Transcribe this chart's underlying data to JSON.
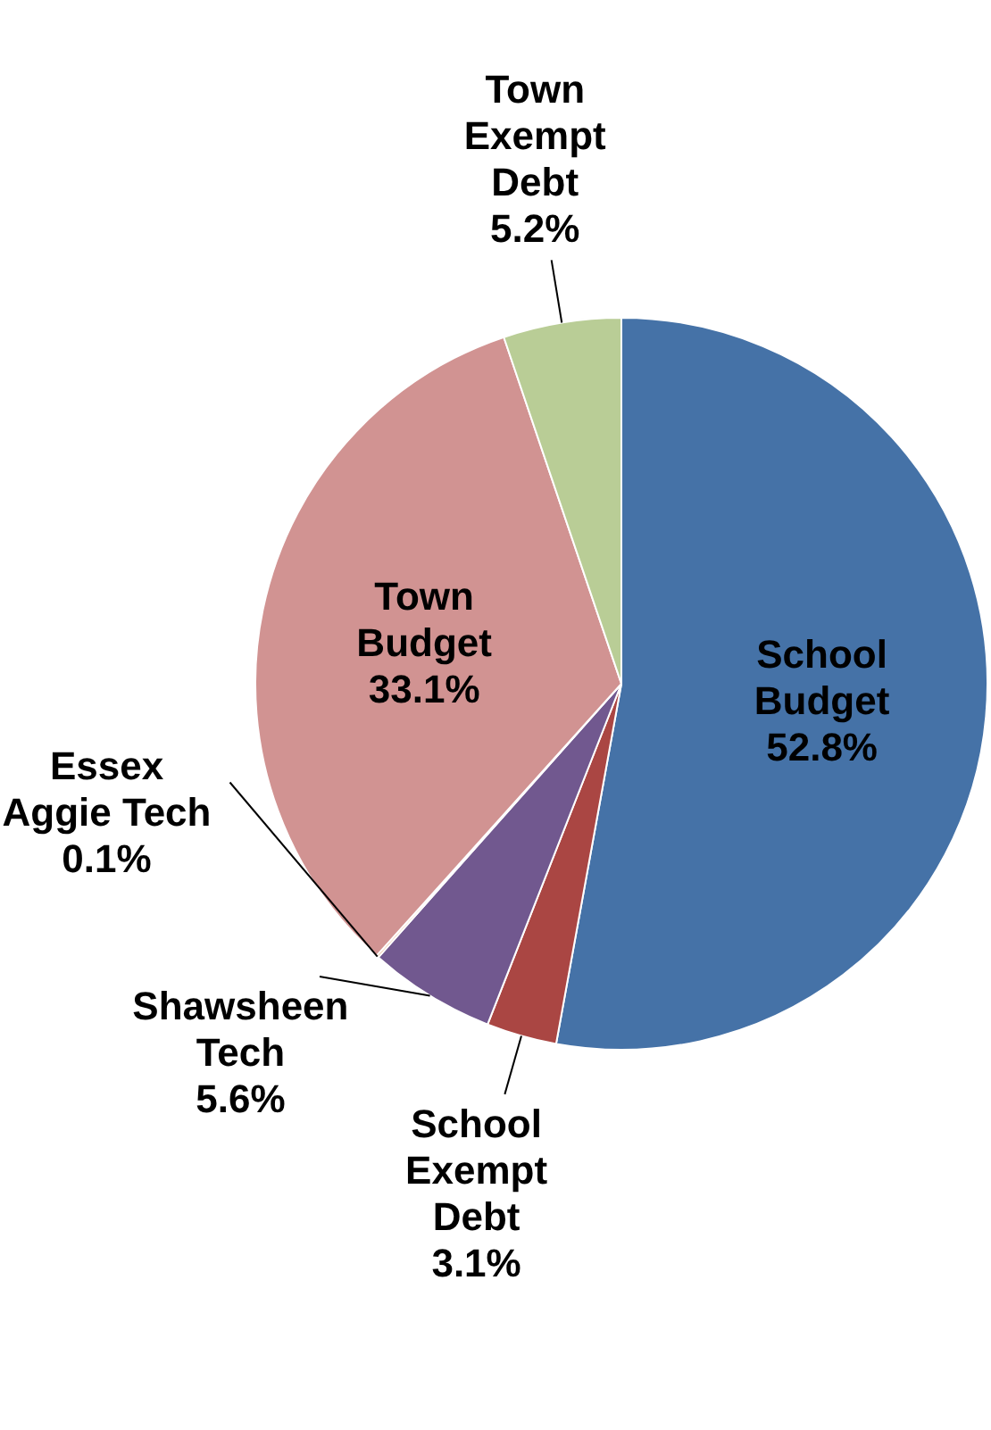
{
  "chart_data": {
    "type": "pie",
    "categories": [
      "School Budget",
      "School Exempt Debt",
      "Shawsheen Tech",
      "Essex Aggie Tech",
      "Town Budget",
      "Town Exempt Debt"
    ],
    "values": [
      52.8,
      3.1,
      5.6,
      0.1,
      33.1,
      5.2
    ],
    "colors": [
      "#4572a7",
      "#aa4643",
      "#71588f",
      "#db843d",
      "#d19392",
      "#b9cd96"
    ],
    "value_labels": [
      "52.8%",
      "3.1%",
      "5.6%",
      "0.1%",
      "33.1%",
      "5.2%"
    ]
  }
}
